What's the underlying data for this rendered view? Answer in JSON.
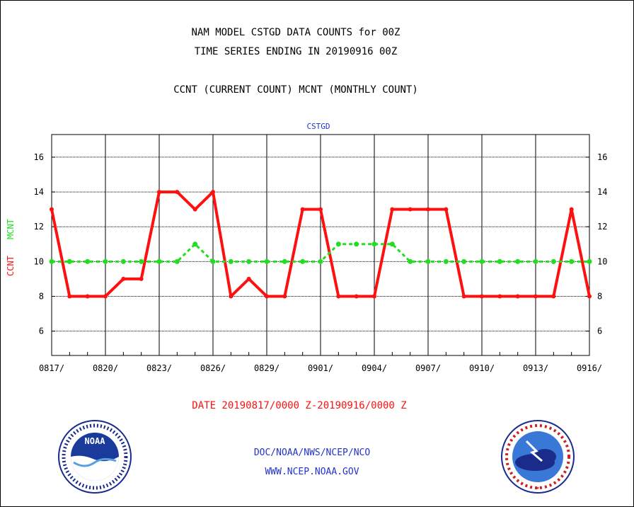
{
  "titles": {
    "line1": "NAM MODEL CSTGD DATA COUNTS for 00Z",
    "line2": "TIME SERIES ENDING IN 20190916 00Z",
    "line3": "CCNT (CURRENT COUNT) MCNT (MONTHLY COUNT)"
  },
  "subtitle": "CSTGD",
  "ylabel": {
    "ccnt": "CCNT",
    "mcnt": "MCNT"
  },
  "date_range": "DATE 20190817/0000 Z-20190916/0000 Z",
  "footer": {
    "line1": "DOC/NOAA/NWS/NCEP/NCO",
    "line2": "WWW.NCEP.NOAA.GOV"
  },
  "logos": {
    "left": "NOAA",
    "right": "NATIONAL WEATHER SERVICE"
  },
  "colors": {
    "ccnt": "#ff1010",
    "mcnt": "#22dd22",
    "blue": "#2233cc"
  },
  "chart_data": {
    "type": "line",
    "x_tick_labels": [
      "0817/",
      "0820/",
      "0823/",
      "0826/",
      "0829/",
      "0901/",
      "0904/",
      "0907/",
      "0910/",
      "0913/",
      "0916/"
    ],
    "x": [
      "0817",
      "0818",
      "0819",
      "0820",
      "0821",
      "0822",
      "0823",
      "0824",
      "0825",
      "0826",
      "0827",
      "0828",
      "0829",
      "0830",
      "0831",
      "0901",
      "0902",
      "0903",
      "0904",
      "0905",
      "0906",
      "0907",
      "0908",
      "0909",
      "0910",
      "0911",
      "0912",
      "0913",
      "0914",
      "0915",
      "0916"
    ],
    "ylim": [
      4.6,
      17.3
    ],
    "y_ticks": [
      6,
      8,
      10,
      12,
      14,
      16
    ],
    "grid": true,
    "series": [
      {
        "name": "CCNT",
        "color": "#ff1010",
        "style": "solid",
        "values": [
          13,
          8,
          8,
          8,
          9,
          9,
          14,
          14,
          13,
          14,
          8,
          9,
          8,
          8,
          13,
          13,
          8,
          8,
          8,
          13,
          13,
          13,
          13,
          8,
          8,
          8,
          8,
          8,
          8,
          13,
          8
        ]
      },
      {
        "name": "MCNT",
        "color": "#22dd22",
        "style": "dashed",
        "values": [
          10,
          10,
          10,
          10,
          10,
          10,
          10,
          10,
          11,
          10,
          10,
          10,
          10,
          10,
          10,
          10,
          11,
          11,
          11,
          11,
          10,
          10,
          10,
          10,
          10,
          10,
          10,
          10,
          10,
          10,
          10
        ]
      }
    ]
  }
}
